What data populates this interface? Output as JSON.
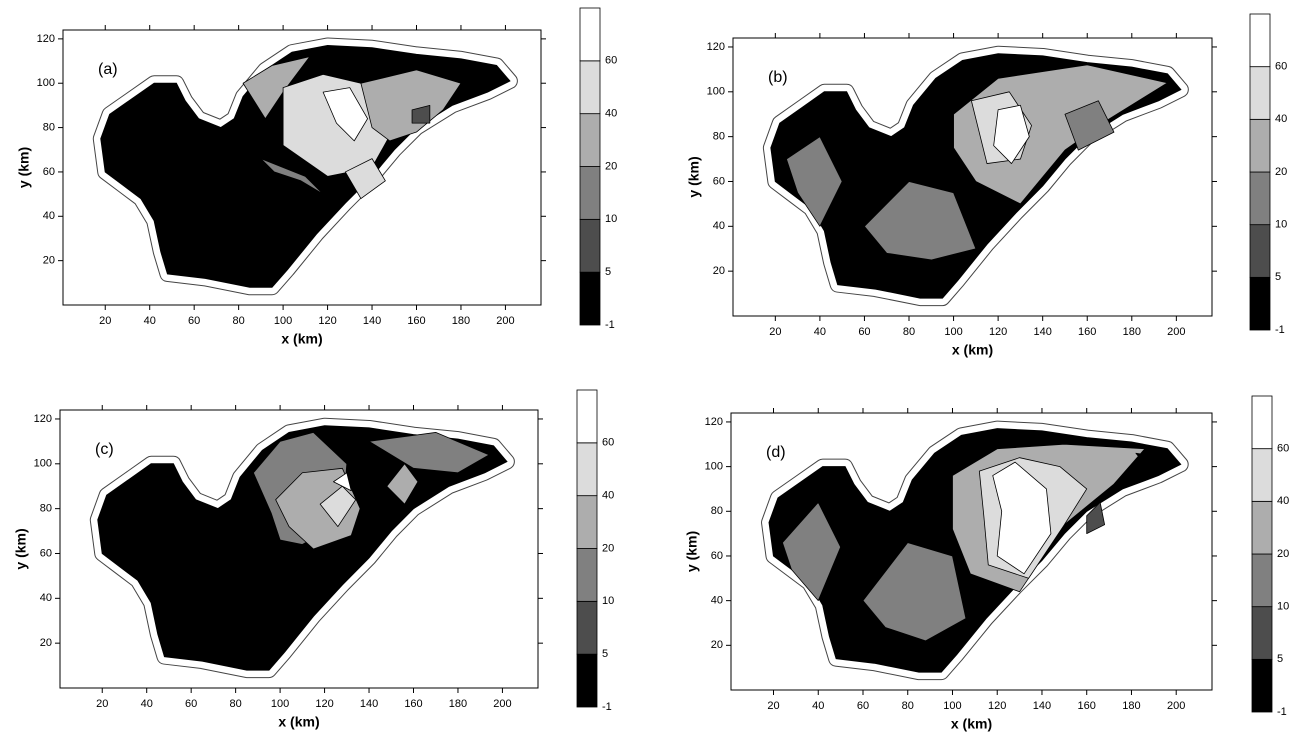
{
  "chart_data": [
    {
      "type": "contour",
      "panel_label": "(a)",
      "xlabel": "x (km)",
      "ylabel": "y (km)",
      "xlim": [
        1,
        216
      ],
      "ylim": [
        0,
        124
      ],
      "xticks": [
        20,
        40,
        60,
        80,
        100,
        120,
        140,
        160,
        180,
        200
      ],
      "yticks": [
        20,
        40,
        60,
        80,
        100,
        120
      ],
      "colorbar": {
        "levels": [
          -1,
          5,
          10,
          20,
          40,
          60
        ],
        "colors": [
          "#000000",
          "#4d4d4d",
          "#808080",
          "#adadad",
          "#dcdcdc",
          "#ffffff"
        ]
      }
    },
    {
      "type": "contour",
      "panel_label": "(b)",
      "xlabel": "x (km)",
      "ylabel": "y (km)",
      "xlim": [
        1,
        216
      ],
      "ylim": [
        0,
        124
      ],
      "xticks": [
        20,
        40,
        60,
        80,
        100,
        120,
        140,
        160,
        180,
        200
      ],
      "yticks": [
        20,
        40,
        60,
        80,
        100,
        120
      ],
      "colorbar": {
        "levels": [
          -1,
          5,
          10,
          20,
          40,
          60
        ],
        "colors": [
          "#000000",
          "#4d4d4d",
          "#808080",
          "#adadad",
          "#dcdcdc",
          "#ffffff"
        ]
      }
    },
    {
      "type": "contour",
      "panel_label": "(c)",
      "xlabel": "x (km)",
      "ylabel": "y (km)",
      "xlim": [
        1,
        216
      ],
      "ylim": [
        0,
        124
      ],
      "xticks": [
        20,
        40,
        60,
        80,
        100,
        120,
        140,
        160,
        180,
        200
      ],
      "yticks": [
        20,
        40,
        60,
        80,
        100,
        120
      ],
      "colorbar": {
        "levels": [
          -1,
          5,
          10,
          20,
          40,
          60
        ],
        "colors": [
          "#000000",
          "#4d4d4d",
          "#808080",
          "#adadad",
          "#dcdcdc",
          "#ffffff"
        ]
      }
    },
    {
      "type": "contour",
      "panel_label": "(d)",
      "xlabel": "x (km)",
      "ylabel": "y (km)",
      "xlim": [
        1,
        216
      ],
      "ylim": [
        0,
        124
      ],
      "xticks": [
        20,
        40,
        60,
        80,
        100,
        120,
        140,
        160,
        180,
        200
      ],
      "yticks": [
        20,
        40,
        60,
        80,
        100,
        120
      ],
      "colorbar": {
        "levels": [
          -1,
          5,
          10,
          20,
          40,
          60
        ],
        "colors": [
          "#000000",
          "#4d4d4d",
          "#808080",
          "#adadad",
          "#dcdcdc",
          "#ffffff"
        ]
      }
    }
  ]
}
